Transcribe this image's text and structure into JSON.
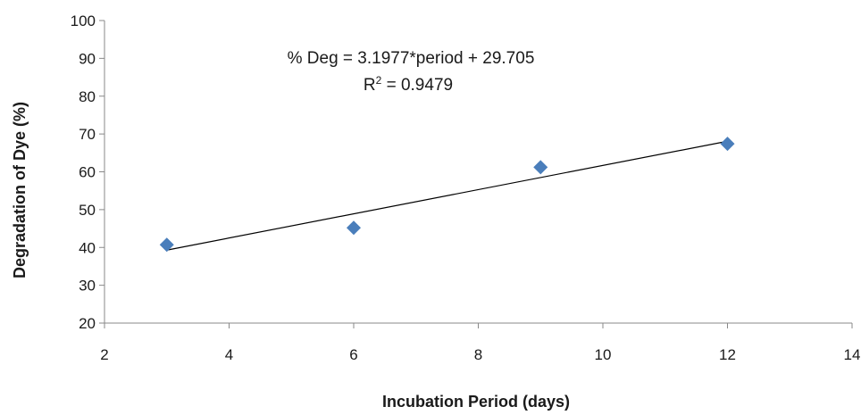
{
  "chart_data": {
    "type": "scatter",
    "title": "",
    "xlabel": "Incubation Period (days)",
    "ylabel": "Degradation of Dye (%)",
    "xlim": [
      2,
      14
    ],
    "ylim": [
      20,
      100
    ],
    "x_ticks": [
      2,
      4,
      6,
      8,
      10,
      12,
      14
    ],
    "y_ticks": [
      20,
      30,
      40,
      50,
      60,
      70,
      80,
      90,
      100
    ],
    "grid": false,
    "legend": "none",
    "marker": "diamond",
    "marker_color": "#4a7ebb",
    "series": [
      {
        "x": [
          3,
          6,
          9,
          12
        ],
        "y": [
          40.7,
          45.2,
          61.2,
          67.4
        ]
      }
    ],
    "trendline": {
      "type": "linear",
      "slope": 3.1977,
      "intercept": 29.705,
      "x_range": [
        3,
        12
      ],
      "color": "#000000"
    },
    "annotations": {
      "equation": "% Deg = 3.1977*period + 29.705",
      "r_squared_prefix": "R",
      "r_squared_sup": "2",
      "r_squared_value": " = 0.9479"
    }
  }
}
